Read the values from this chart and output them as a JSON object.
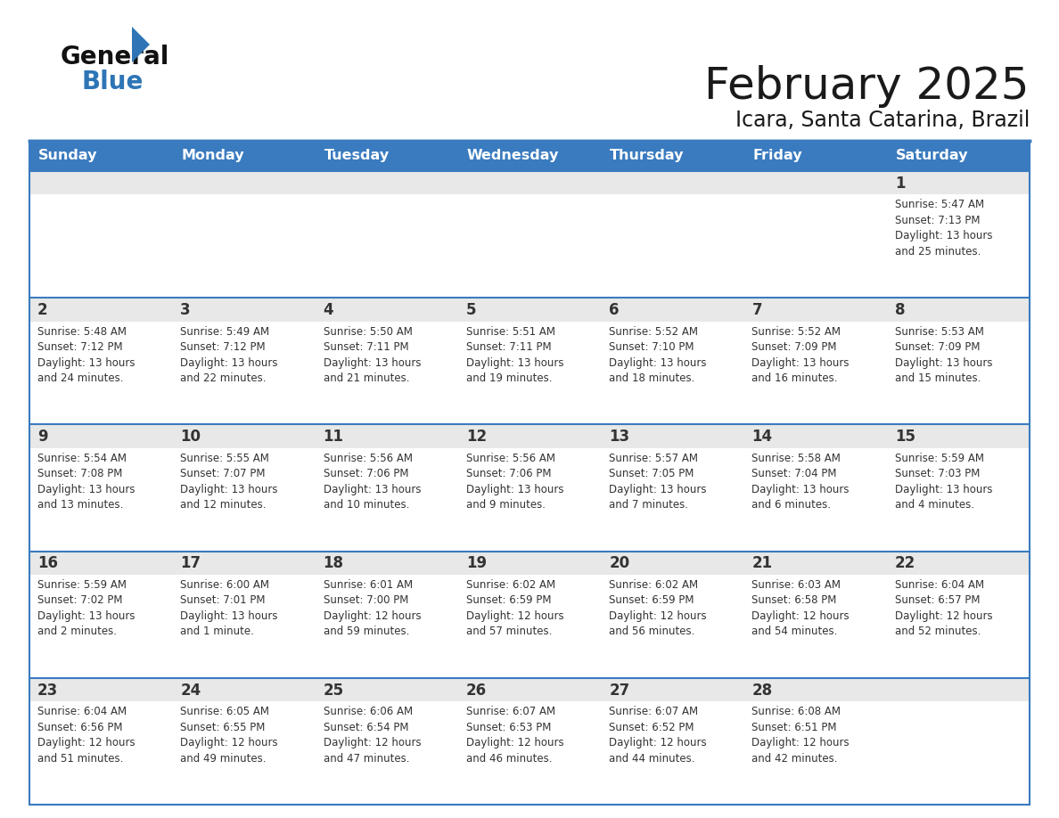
{
  "title": "February 2025",
  "subtitle": "Icara, Santa Catarina, Brazil",
  "header_bg": "#3a7bbf",
  "header_text": "#ffffff",
  "row_shade_bg": "#e8e8e8",
  "row_white_bg": "#ffffff",
  "border_color": "#3a7bbf",
  "text_color": "#333333",
  "day_headers": [
    "Sunday",
    "Monday",
    "Tuesday",
    "Wednesday",
    "Thursday",
    "Friday",
    "Saturday"
  ],
  "calendar_data": [
    [
      null,
      null,
      null,
      null,
      null,
      null,
      {
        "day": 1,
        "sunrise": "5:47 AM",
        "sunset": "7:13 PM",
        "daylight": "13 hours\nand 25 minutes."
      }
    ],
    [
      {
        "day": 2,
        "sunrise": "5:48 AM",
        "sunset": "7:12 PM",
        "daylight": "13 hours\nand 24 minutes."
      },
      {
        "day": 3,
        "sunrise": "5:49 AM",
        "sunset": "7:12 PM",
        "daylight": "13 hours\nand 22 minutes."
      },
      {
        "day": 4,
        "sunrise": "5:50 AM",
        "sunset": "7:11 PM",
        "daylight": "13 hours\nand 21 minutes."
      },
      {
        "day": 5,
        "sunrise": "5:51 AM",
        "sunset": "7:11 PM",
        "daylight": "13 hours\nand 19 minutes."
      },
      {
        "day": 6,
        "sunrise": "5:52 AM",
        "sunset": "7:10 PM",
        "daylight": "13 hours\nand 18 minutes."
      },
      {
        "day": 7,
        "sunrise": "5:52 AM",
        "sunset": "7:09 PM",
        "daylight": "13 hours\nand 16 minutes."
      },
      {
        "day": 8,
        "sunrise": "5:53 AM",
        "sunset": "7:09 PM",
        "daylight": "13 hours\nand 15 minutes."
      }
    ],
    [
      {
        "day": 9,
        "sunrise": "5:54 AM",
        "sunset": "7:08 PM",
        "daylight": "13 hours\nand 13 minutes."
      },
      {
        "day": 10,
        "sunrise": "5:55 AM",
        "sunset": "7:07 PM",
        "daylight": "13 hours\nand 12 minutes."
      },
      {
        "day": 11,
        "sunrise": "5:56 AM",
        "sunset": "7:06 PM",
        "daylight": "13 hours\nand 10 minutes."
      },
      {
        "day": 12,
        "sunrise": "5:56 AM",
        "sunset": "7:06 PM",
        "daylight": "13 hours\nand 9 minutes."
      },
      {
        "day": 13,
        "sunrise": "5:57 AM",
        "sunset": "7:05 PM",
        "daylight": "13 hours\nand 7 minutes."
      },
      {
        "day": 14,
        "sunrise": "5:58 AM",
        "sunset": "7:04 PM",
        "daylight": "13 hours\nand 6 minutes."
      },
      {
        "day": 15,
        "sunrise": "5:59 AM",
        "sunset": "7:03 PM",
        "daylight": "13 hours\nand 4 minutes."
      }
    ],
    [
      {
        "day": 16,
        "sunrise": "5:59 AM",
        "sunset": "7:02 PM",
        "daylight": "13 hours\nand 2 minutes."
      },
      {
        "day": 17,
        "sunrise": "6:00 AM",
        "sunset": "7:01 PM",
        "daylight": "13 hours\nand 1 minute."
      },
      {
        "day": 18,
        "sunrise": "6:01 AM",
        "sunset": "7:00 PM",
        "daylight": "12 hours\nand 59 minutes."
      },
      {
        "day": 19,
        "sunrise": "6:02 AM",
        "sunset": "6:59 PM",
        "daylight": "12 hours\nand 57 minutes."
      },
      {
        "day": 20,
        "sunrise": "6:02 AM",
        "sunset": "6:59 PM",
        "daylight": "12 hours\nand 56 minutes."
      },
      {
        "day": 21,
        "sunrise": "6:03 AM",
        "sunset": "6:58 PM",
        "daylight": "12 hours\nand 54 minutes."
      },
      {
        "day": 22,
        "sunrise": "6:04 AM",
        "sunset": "6:57 PM",
        "daylight": "12 hours\nand 52 minutes."
      }
    ],
    [
      {
        "day": 23,
        "sunrise": "6:04 AM",
        "sunset": "6:56 PM",
        "daylight": "12 hours\nand 51 minutes."
      },
      {
        "day": 24,
        "sunrise": "6:05 AM",
        "sunset": "6:55 PM",
        "daylight": "12 hours\nand 49 minutes."
      },
      {
        "day": 25,
        "sunrise": "6:06 AM",
        "sunset": "6:54 PM",
        "daylight": "12 hours\nand 47 minutes."
      },
      {
        "day": 26,
        "sunrise": "6:07 AM",
        "sunset": "6:53 PM",
        "daylight": "12 hours\nand 46 minutes."
      },
      {
        "day": 27,
        "sunrise": "6:07 AM",
        "sunset": "6:52 PM",
        "daylight": "12 hours\nand 44 minutes."
      },
      {
        "day": 28,
        "sunrise": "6:08 AM",
        "sunset": "6:51 PM",
        "daylight": "12 hours\nand 42 minutes."
      },
      null
    ]
  ]
}
